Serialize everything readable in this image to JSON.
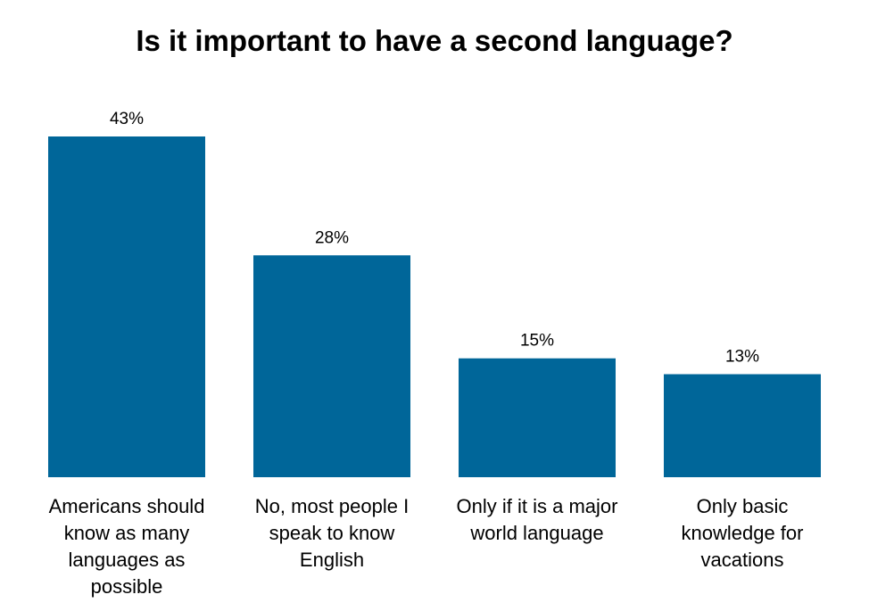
{
  "chart_data": {
    "type": "bar",
    "title": "Is it important to have a second language?",
    "categories": [
      [
        "Americans should",
        "know as many",
        "languages as",
        "possible"
      ],
      [
        "No, most people I",
        "speak to know",
        "English"
      ],
      [
        "Only if it is a major",
        "world language"
      ],
      [
        "Only basic",
        "knowledge for",
        "vacations"
      ]
    ],
    "values": [
      43,
      28,
      15,
      13
    ],
    "data_labels": [
      "43%",
      "28%",
      "15%",
      "13%"
    ],
    "xlabel": "",
    "ylabel": "",
    "ylim": [
      0,
      43
    ],
    "grid": false,
    "legend": "none",
    "colors": {
      "bar": "#006699",
      "text": "#000000",
      "background": "#ffffff"
    }
  }
}
